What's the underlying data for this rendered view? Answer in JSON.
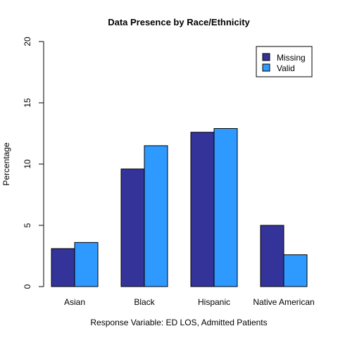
{
  "chart_data": {
    "type": "bar",
    "title": "Data Presence by Race/Ethnicity",
    "xlabel": "Response Variable: ED LOS, Admitted Patients",
    "ylabel": "Percentage",
    "categories": [
      "Asian",
      "Black",
      "Hispanic",
      "Native American"
    ],
    "series": [
      {
        "name": "Missing",
        "color": "#333399",
        "values": [
          3.1,
          9.6,
          12.6,
          5.0
        ]
      },
      {
        "name": "Valid",
        "color": "#2e9aff",
        "values": [
          3.6,
          11.5,
          12.9,
          2.6
        ]
      }
    ],
    "ylim": [
      0,
      20
    ],
    "yticks": [
      "0",
      "5",
      "10",
      "15",
      "20"
    ],
    "legend_position": "top-right",
    "grid": false
  }
}
